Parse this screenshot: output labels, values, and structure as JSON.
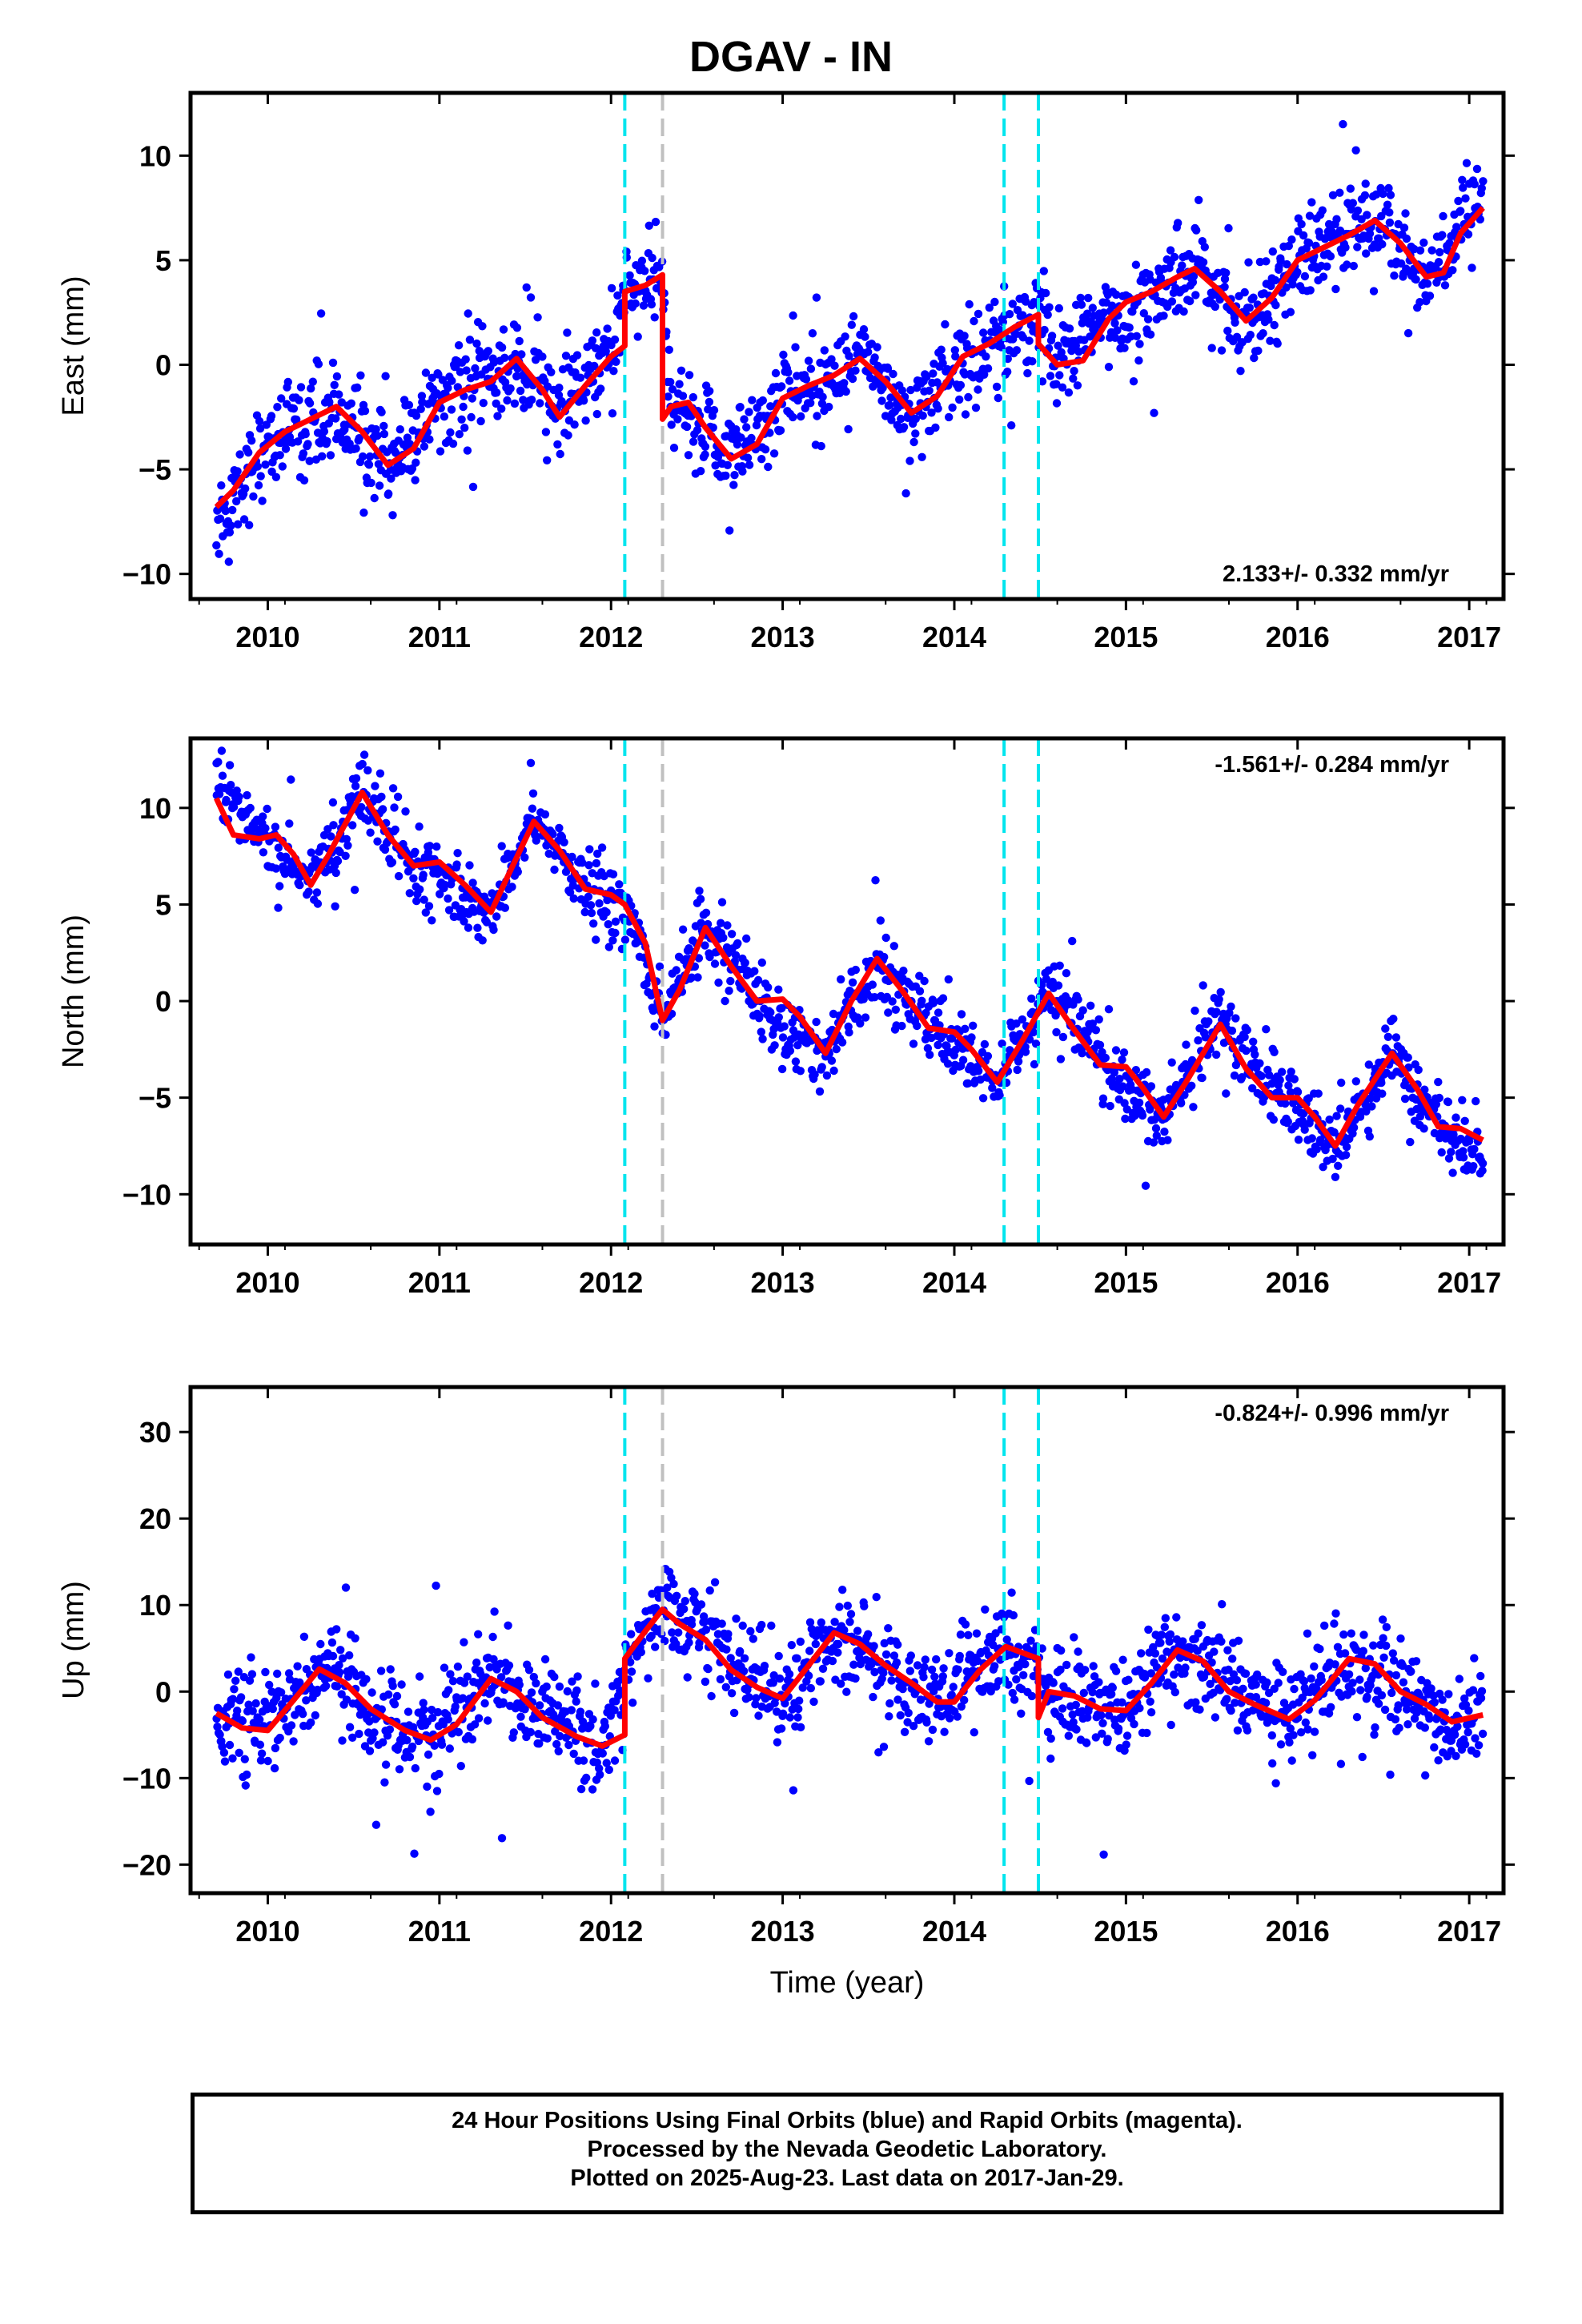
{
  "title": "DGAV - IN",
  "caption": [
    "24 Hour Positions Using Final Orbits (blue) and Rapid Orbits (magenta).",
    "Processed by the Nevada Geodetic Laboratory.",
    "Plotted on 2025-Aug-23. Last data on 2017-Jan-29."
  ],
  "colors": {
    "points": "#0000ff",
    "fit": "#ff0000",
    "event_cyan": "#00e5ee",
    "event_gray": "#c0c0c0",
    "axis": "#000000"
  },
  "chart_data": [
    {
      "type": "scatter",
      "ylabel": "East (mm)",
      "xlabel": "",
      "xlim": [
        2009.55,
        2017.2
      ],
      "ylim": [
        -11.2,
        13
      ],
      "xticks": [
        2010,
        2011,
        2012,
        2013,
        2014,
        2015,
        2016,
        2017
      ],
      "yticks": [
        -10,
        -5,
        0,
        5,
        10
      ],
      "rate_label": "2.133+/- 0.332 mm/yr",
      "rate_position": "bottom-right",
      "event_lines": [
        {
          "x": 2012.08,
          "color": "cyan"
        },
        {
          "x": 2012.3,
          "color": "gray"
        },
        {
          "x": 2014.29,
          "color": "cyan"
        },
        {
          "x": 2014.49,
          "color": "cyan"
        }
      ],
      "fit_series": [
        [
          2009.7,
          -6.8
        ],
        [
          2009.8,
          -6.0
        ],
        [
          2009.95,
          -4.2
        ],
        [
          2010.1,
          -3.2
        ],
        [
          2010.25,
          -2.6
        ],
        [
          2010.4,
          -2.0
        ],
        [
          2010.55,
          -3.2
        ],
        [
          2010.7,
          -4.8
        ],
        [
          2010.85,
          -4.0
        ],
        [
          2011.0,
          -1.8
        ],
        [
          2011.15,
          -1.2
        ],
        [
          2011.3,
          -0.8
        ],
        [
          2011.45,
          0.3
        ],
        [
          2011.6,
          -1.2
        ],
        [
          2011.7,
          -2.5
        ],
        [
          2011.85,
          -1.0
        ],
        [
          2012.0,
          0.4
        ],
        [
          2012.08,
          0.9
        ],
        [
          2012.08,
          3.5
        ],
        [
          2012.2,
          3.8
        ],
        [
          2012.3,
          4.3
        ],
        [
          2012.3,
          -2.6
        ],
        [
          2012.35,
          -2.0
        ],
        [
          2012.45,
          -1.8
        ],
        [
          2012.55,
          -3.0
        ],
        [
          2012.7,
          -4.5
        ],
        [
          2012.85,
          -3.8
        ],
        [
          2013.0,
          -1.6
        ],
        [
          2013.15,
          -1.0
        ],
        [
          2013.3,
          -0.5
        ],
        [
          2013.45,
          0.3
        ],
        [
          2013.6,
          -0.8
        ],
        [
          2013.75,
          -2.3
        ],
        [
          2013.9,
          -1.5
        ],
        [
          2014.05,
          0.4
        ],
        [
          2014.2,
          1.0
        ],
        [
          2014.35,
          1.8
        ],
        [
          2014.49,
          2.4
        ],
        [
          2014.49,
          1.0
        ],
        [
          2014.6,
          0.0
        ],
        [
          2014.75,
          0.2
        ],
        [
          2014.9,
          2.2
        ],
        [
          2015.0,
          3.0
        ],
        [
          2015.15,
          3.5
        ],
        [
          2015.3,
          4.2
        ],
        [
          2015.4,
          4.6
        ],
        [
          2015.55,
          3.5
        ],
        [
          2015.7,
          2.1
        ],
        [
          2015.85,
          3.2
        ],
        [
          2016.0,
          5.0
        ],
        [
          2016.15,
          5.6
        ],
        [
          2016.3,
          6.2
        ],
        [
          2016.45,
          6.9
        ],
        [
          2016.6,
          5.8
        ],
        [
          2016.75,
          4.2
        ],
        [
          2016.85,
          4.4
        ],
        [
          2016.95,
          6.3
        ],
        [
          2017.08,
          7.5
        ]
      ],
      "scatter_trend": [
        [
          2009.7,
          -7.5
        ],
        [
          2010.0,
          -3.6
        ],
        [
          2010.4,
          -2.2
        ],
        [
          2010.7,
          -4.8
        ],
        [
          2011.0,
          -1.8
        ],
        [
          2011.45,
          0.0
        ],
        [
          2011.7,
          -2.2
        ],
        [
          2012.0,
          0.8
        ],
        [
          2012.1,
          3.6
        ],
        [
          2012.3,
          3.8
        ],
        [
          2012.35,
          -2.0
        ],
        [
          2012.7,
          -4.2
        ],
        [
          2013.0,
          -1.5
        ],
        [
          2013.45,
          0.2
        ],
        [
          2013.75,
          -2.2
        ],
        [
          2014.1,
          0.5
        ],
        [
          2014.49,
          2.2
        ],
        [
          2014.6,
          0.0
        ],
        [
          2014.9,
          2.2
        ],
        [
          2015.4,
          4.5
        ],
        [
          2015.7,
          2.0
        ],
        [
          2016.0,
          5.0
        ],
        [
          2016.45,
          7.0
        ],
        [
          2016.75,
          4.3
        ],
        [
          2017.08,
          7.6
        ]
      ],
      "scatter_spread": 2.0,
      "scatter_count": 1500
    },
    {
      "type": "scatter",
      "ylabel": "North (mm)",
      "xlabel": "",
      "xlim": [
        2009.55,
        2017.2
      ],
      "ylim": [
        -12.6,
        13.6
      ],
      "xticks": [
        2010,
        2011,
        2012,
        2013,
        2014,
        2015,
        2016,
        2017
      ],
      "yticks": [
        -10,
        -5,
        0,
        5,
        10
      ],
      "rate_label": "-1.561+/- 0.284 mm/yr",
      "rate_position": "top-right",
      "event_lines": [
        {
          "x": 2012.08,
          "color": "cyan"
        },
        {
          "x": 2012.3,
          "color": "gray"
        },
        {
          "x": 2014.29,
          "color": "cyan"
        },
        {
          "x": 2014.49,
          "color": "cyan"
        }
      ],
      "fit_series": [
        [
          2009.7,
          10.5
        ],
        [
          2009.8,
          8.6
        ],
        [
          2009.95,
          8.4
        ],
        [
          2010.05,
          8.6
        ],
        [
          2010.15,
          7.6
        ],
        [
          2010.25,
          6.0
        ],
        [
          2010.35,
          7.5
        ],
        [
          2010.55,
          10.8
        ],
        [
          2010.7,
          8.6
        ],
        [
          2010.85,
          7.0
        ],
        [
          2011.0,
          7.2
        ],
        [
          2011.15,
          6.0
        ],
        [
          2011.3,
          4.6
        ],
        [
          2011.4,
          6.5
        ],
        [
          2011.55,
          9.3
        ],
        [
          2011.7,
          7.8
        ],
        [
          2011.85,
          5.8
        ],
        [
          2012.0,
          5.5
        ],
        [
          2012.08,
          5.0
        ],
        [
          2012.2,
          3.0
        ],
        [
          2012.3,
          -1.0
        ],
        [
          2012.4,
          0.6
        ],
        [
          2012.55,
          3.8
        ],
        [
          2012.7,
          1.8
        ],
        [
          2012.85,
          0.0
        ],
        [
          2013.0,
          0.1
        ],
        [
          2013.1,
          -0.8
        ],
        [
          2013.25,
          -2.7
        ],
        [
          2013.4,
          0.0
        ],
        [
          2013.55,
          2.2
        ],
        [
          2013.7,
          0.5
        ],
        [
          2013.85,
          -1.4
        ],
        [
          2014.0,
          -1.6
        ],
        [
          2014.1,
          -2.5
        ],
        [
          2014.25,
          -4.2
        ],
        [
          2014.4,
          -2.0
        ],
        [
          2014.55,
          0.4
        ],
        [
          2014.7,
          -1.5
        ],
        [
          2014.85,
          -3.3
        ],
        [
          2015.0,
          -3.4
        ],
        [
          2015.1,
          -4.5
        ],
        [
          2015.22,
          -6.0
        ],
        [
          2015.35,
          -4.2
        ],
        [
          2015.55,
          -1.2
        ],
        [
          2015.7,
          -3.5
        ],
        [
          2015.85,
          -5.0
        ],
        [
          2016.0,
          -5.0
        ],
        [
          2016.1,
          -6.0
        ],
        [
          2016.22,
          -7.5
        ],
        [
          2016.35,
          -5.4
        ],
        [
          2016.55,
          -2.7
        ],
        [
          2016.7,
          -4.6
        ],
        [
          2016.82,
          -6.5
        ],
        [
          2016.95,
          -6.6
        ],
        [
          2017.08,
          -7.2
        ]
      ],
      "scatter_trend": [
        [
          2009.7,
          11.0
        ],
        [
          2010.0,
          8.5
        ],
        [
          2010.25,
          6.0
        ],
        [
          2010.55,
          10.8
        ],
        [
          2010.85,
          7.0
        ],
        [
          2011.3,
          4.5
        ],
        [
          2011.55,
          9.5
        ],
        [
          2011.85,
          5.8
        ],
        [
          2012.1,
          4.6
        ],
        [
          2012.3,
          -0.8
        ],
        [
          2012.55,
          3.8
        ],
        [
          2012.85,
          0.0
        ],
        [
          2013.25,
          -2.8
        ],
        [
          2013.55,
          2.2
        ],
        [
          2013.9,
          -1.5
        ],
        [
          2014.25,
          -4.5
        ],
        [
          2014.55,
          0.5
        ],
        [
          2014.9,
          -3.4
        ],
        [
          2015.22,
          -6.0
        ],
        [
          2015.55,
          -1.0
        ],
        [
          2015.9,
          -5.0
        ],
        [
          2016.22,
          -7.6
        ],
        [
          2016.55,
          -2.6
        ],
        [
          2016.85,
          -6.6
        ],
        [
          2017.08,
          -7.8
        ]
      ],
      "scatter_spread": 1.6,
      "scatter_count": 1500
    },
    {
      "type": "scatter",
      "ylabel": "Up (mm)",
      "xlabel": "Time (year)",
      "xlim": [
        2009.55,
        2017.2
      ],
      "ylim": [
        -23.3,
        35.2
      ],
      "xticks": [
        2010,
        2011,
        2012,
        2013,
        2014,
        2015,
        2016,
        2017
      ],
      "yticks": [
        -20,
        -10,
        0,
        10,
        20,
        30
      ],
      "rate_label": "-0.824+/- 0.996 mm/yr",
      "rate_position": "top-right",
      "event_lines": [
        {
          "x": 2012.08,
          "color": "cyan"
        },
        {
          "x": 2012.3,
          "color": "gray"
        },
        {
          "x": 2014.29,
          "color": "cyan"
        },
        {
          "x": 2014.49,
          "color": "cyan"
        }
      ],
      "fit_series": [
        [
          2009.7,
          -2.5
        ],
        [
          2009.85,
          -4.2
        ],
        [
          2010.0,
          -4.5
        ],
        [
          2010.15,
          -1.0
        ],
        [
          2010.3,
          2.6
        ],
        [
          2010.45,
          1.0
        ],
        [
          2010.6,
          -2.0
        ],
        [
          2010.8,
          -4.5
        ],
        [
          2010.95,
          -5.6
        ],
        [
          2011.1,
          -3.8
        ],
        [
          2011.3,
          1.5
        ],
        [
          2011.45,
          0.0
        ],
        [
          2011.6,
          -3.0
        ],
        [
          2011.8,
          -5.2
        ],
        [
          2011.95,
          -6.3
        ],
        [
          2012.08,
          -5.0
        ],
        [
          2012.08,
          3.8
        ],
        [
          2012.2,
          7.0
        ],
        [
          2012.3,
          9.5
        ],
        [
          2012.4,
          7.8
        ],
        [
          2012.55,
          6.0
        ],
        [
          2012.7,
          2.5
        ],
        [
          2012.85,
          0.5
        ],
        [
          2013.0,
          -0.8
        ],
        [
          2013.15,
          3.0
        ],
        [
          2013.3,
          6.8
        ],
        [
          2013.45,
          5.5
        ],
        [
          2013.6,
          3.0
        ],
        [
          2013.75,
          1.0
        ],
        [
          2013.9,
          -1.2
        ],
        [
          2014.0,
          -1.2
        ],
        [
          2014.15,
          2.5
        ],
        [
          2014.3,
          5.2
        ],
        [
          2014.49,
          3.8
        ],
        [
          2014.49,
          -3.0
        ],
        [
          2014.55,
          0.0
        ],
        [
          2014.7,
          -0.5
        ],
        [
          2014.85,
          -2.0
        ],
        [
          2015.0,
          -2.2
        ],
        [
          2015.15,
          1.0
        ],
        [
          2015.3,
          4.8
        ],
        [
          2015.45,
          3.5
        ],
        [
          2015.6,
          0.0
        ],
        [
          2015.75,
          -1.5
        ],
        [
          2015.95,
          -3.2
        ],
        [
          2016.1,
          -1.0
        ],
        [
          2016.3,
          3.8
        ],
        [
          2016.45,
          3.2
        ],
        [
          2016.6,
          0.0
        ],
        [
          2016.75,
          -1.5
        ],
        [
          2016.9,
          -3.5
        ],
        [
          2017.08,
          -2.7
        ]
      ],
      "scatter_trend": [
        [
          2009.7,
          -3.0
        ],
        [
          2010.0,
          -4.5
        ],
        [
          2010.3,
          2.5
        ],
        [
          2010.6,
          -2.0
        ],
        [
          2010.95,
          -5.5
        ],
        [
          2011.3,
          1.5
        ],
        [
          2011.95,
          -6.0
        ],
        [
          2012.1,
          4.0
        ],
        [
          2012.3,
          9.5
        ],
        [
          2012.5,
          8.0
        ],
        [
          2013.0,
          -1.0
        ],
        [
          2013.3,
          6.5
        ],
        [
          2013.9,
          -1.5
        ],
        [
          2014.3,
          5.5
        ],
        [
          2014.55,
          0.0
        ],
        [
          2015.0,
          -2.5
        ],
        [
          2015.3,
          5.0
        ],
        [
          2015.95,
          -3.0
        ],
        [
          2016.3,
          3.8
        ],
        [
          2016.9,
          -3.5
        ],
        [
          2017.08,
          -2.5
        ]
      ],
      "scatter_spread": 4.8,
      "scatter_count": 1500
    }
  ]
}
